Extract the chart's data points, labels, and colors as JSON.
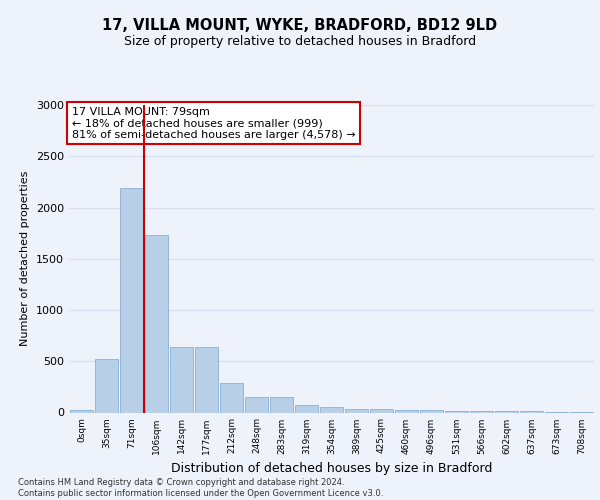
{
  "title1": "17, VILLA MOUNT, WYKE, BRADFORD, BD12 9LD",
  "title2": "Size of property relative to detached houses in Bradford",
  "xlabel": "Distribution of detached houses by size in Bradford",
  "ylabel": "Number of detached properties",
  "categories": [
    "0sqm",
    "35sqm",
    "71sqm",
    "106sqm",
    "142sqm",
    "177sqm",
    "212sqm",
    "248sqm",
    "283sqm",
    "319sqm",
    "354sqm",
    "389sqm",
    "425sqm",
    "460sqm",
    "496sqm",
    "531sqm",
    "566sqm",
    "602sqm",
    "637sqm",
    "673sqm",
    "708sqm"
  ],
  "values": [
    25,
    525,
    2190,
    1730,
    635,
    635,
    290,
    155,
    155,
    75,
    50,
    35,
    30,
    25,
    20,
    18,
    15,
    12,
    10,
    8,
    5
  ],
  "bar_color": "#b8cfe8",
  "bar_edge_color": "#8aafd4",
  "vline_x": 2.5,
  "vline_color": "#cc0000",
  "annotation_box_text": "17 VILLA MOUNT: 79sqm\n← 18% of detached houses are smaller (999)\n81% of semi-detached houses are larger (4,578) →",
  "annotation_box_color": "#cc0000",
  "ylim": [
    0,
    3000
  ],
  "yticks": [
    0,
    500,
    1000,
    1500,
    2000,
    2500,
    3000
  ],
  "footnote": "Contains HM Land Registry data © Crown copyright and database right 2024.\nContains public sector information licensed under the Open Government Licence v3.0.",
  "background_color": "#eef2fb",
  "grid_color": "#d8dff0",
  "fig_bg": "#eef2fb"
}
